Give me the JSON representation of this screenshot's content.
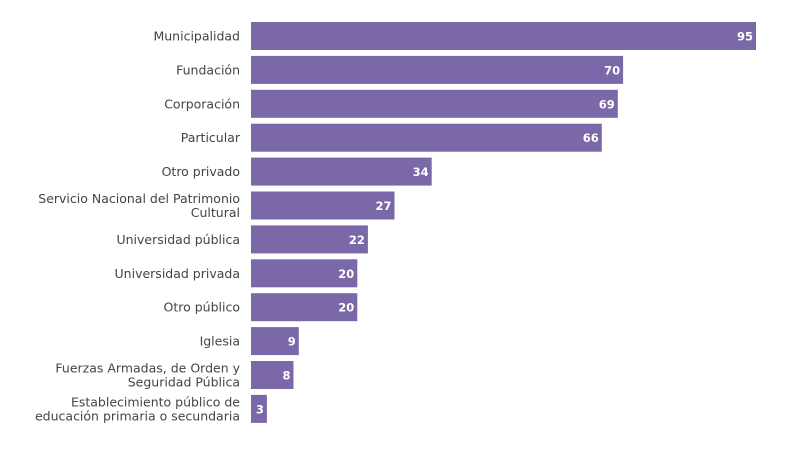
{
  "chart_data": {
    "type": "bar",
    "orientation": "horizontal",
    "title": "",
    "xlabel": "",
    "ylabel": "",
    "bar_color": "#7b68a8",
    "value_label_color": "#ffffff",
    "grid": false,
    "legend": "none",
    "xlim": [
      0,
      95
    ],
    "categories": [
      [
        "Municipalidad"
      ],
      [
        "Fundación"
      ],
      [
        "Corporación"
      ],
      [
        "Particular"
      ],
      [
        "Otro privado"
      ],
      [
        "Servicio Nacional del Patrimonio",
        "Cultural"
      ],
      [
        "Universidad pública"
      ],
      [
        "Universidad privada"
      ],
      [
        "Otro público"
      ],
      [
        "Iglesia"
      ],
      [
        "Fuerzas Armadas, de Orden y",
        "Seguridad Pública"
      ],
      [
        "Establecimiento público de",
        "educación primaria o secundaria"
      ]
    ],
    "values": [
      95,
      70,
      69,
      66,
      34,
      27,
      22,
      20,
      20,
      9,
      8,
      3
    ]
  }
}
